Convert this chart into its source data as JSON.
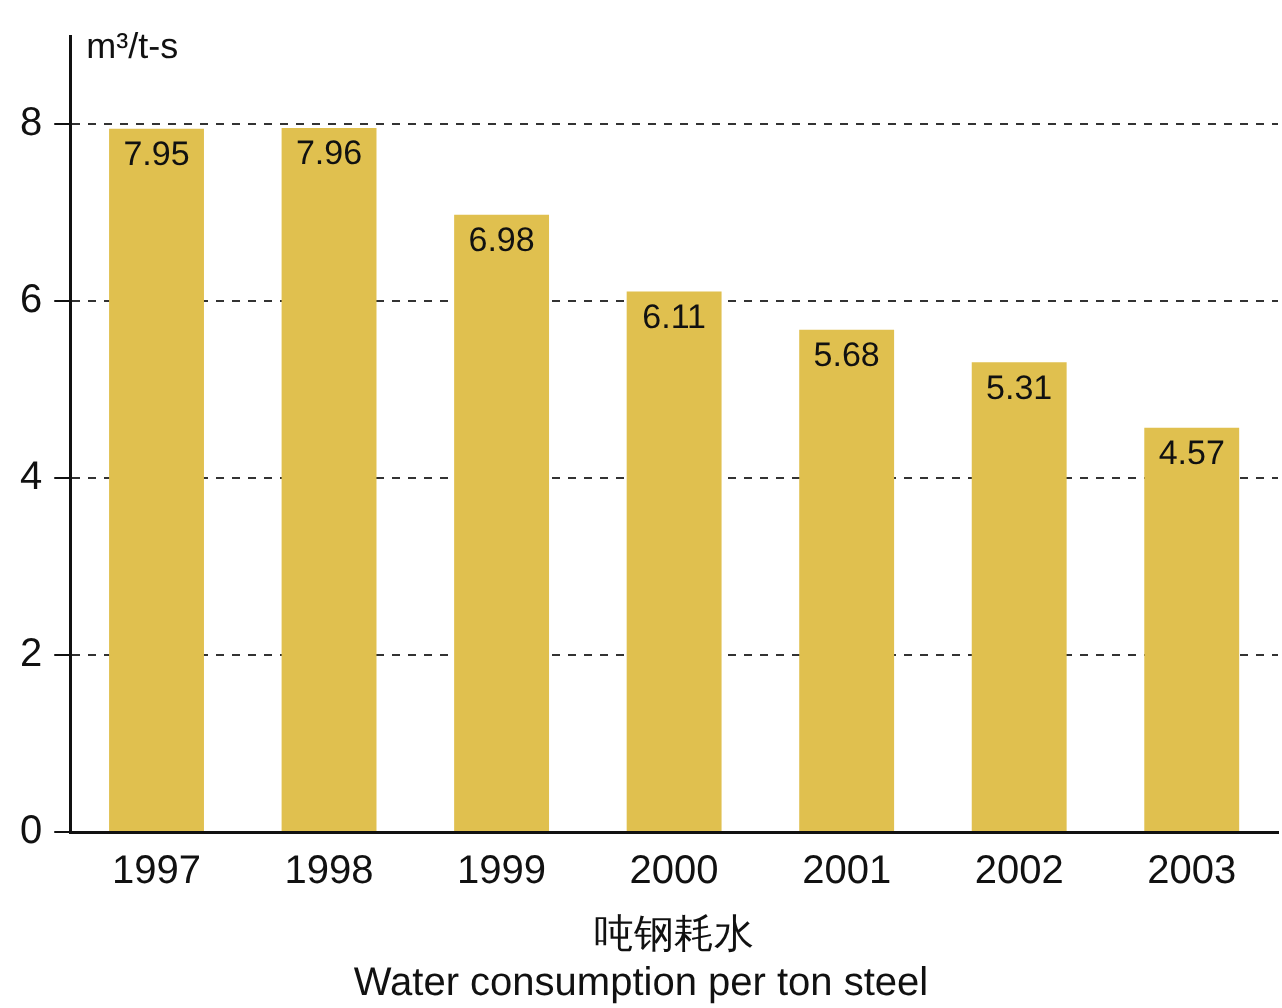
{
  "chart_data": {
    "type": "bar",
    "ylabel": "m³/t-s",
    "xlabel": "吨钢耗水",
    "annotations": [
      "Water consumption per ton steel"
    ],
    "categories": [
      "1997",
      "1998",
      "1999",
      "2000",
      "2001",
      "2002",
      "2003"
    ],
    "values": [
      7.95,
      7.96,
      6.98,
      6.11,
      5.68,
      5.31,
      4.57
    ],
    "color": "#e0c04f",
    "ylim": [
      0,
      9
    ],
    "yticks": [
      0,
      2,
      4,
      6,
      8
    ],
    "grid": "y",
    "data_labels": true,
    "legend": false
  }
}
